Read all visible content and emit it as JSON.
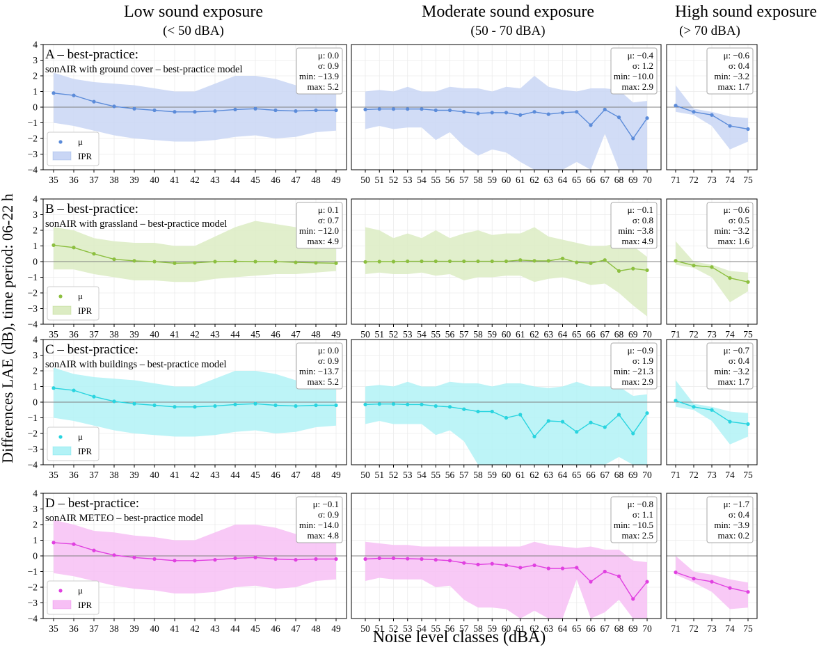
{
  "figure": {
    "ylabel": "Differences LAE (dB), time period: 06-22 h",
    "xlabel": "Noise level classes (dBA)",
    "column_headers": [
      {
        "title": "Low sound exposure",
        "subtitle": "(< 50 dBA)"
      },
      {
        "title": "Moderate sound exposure",
        "subtitle": "(50 - 70 dBA)"
      },
      {
        "title": "High sound exposure",
        "subtitle": "(> 70 dBA)"
      }
    ],
    "legend": {
      "mean_label": "μ",
      "band_label": "IPR"
    },
    "stat_labels": {
      "mean": "μ:",
      "sd": "σ:",
      "min": "min:",
      "max": "max:"
    }
  },
  "chart_data": {
    "type": "line",
    "ylim": [
      -4,
      4
    ],
    "yticks": [
      -4,
      -3,
      -2,
      -1,
      0,
      1,
      2,
      3,
      4
    ],
    "grid": true,
    "legend_placement": "bottom-left",
    "columns": [
      {
        "x": [
          35,
          36,
          37,
          38,
          39,
          40,
          41,
          42,
          43,
          44,
          45,
          46,
          47,
          48,
          49
        ]
      },
      {
        "x": [
          50,
          51,
          52,
          53,
          54,
          55,
          56,
          57,
          58,
          59,
          60,
          61,
          62,
          63,
          64,
          65,
          66,
          67,
          68,
          69,
          70
        ]
      },
      {
        "x": [
          71,
          72,
          73,
          74,
          75
        ]
      }
    ],
    "rows": [
      {
        "title": "A – best-practice:",
        "subtitle": "sonAIR with ground cover – best-practice model",
        "color": "#5b8bd9",
        "band_color": "#c9d6f5",
        "panels": [
          {
            "mean": [
              0.9,
              0.75,
              0.35,
              0.05,
              -0.1,
              -0.2,
              -0.3,
              -0.3,
              -0.25,
              -0.15,
              -0.1,
              -0.2,
              -0.25,
              -0.2,
              -0.2
            ],
            "upper": [
              2.2,
              1.8,
              1.6,
              1.5,
              1.4,
              1.2,
              1.0,
              1.0,
              1.5,
              2.0,
              2.0,
              1.8,
              1.4,
              1.0,
              1.0
            ],
            "lower": [
              -1.0,
              -1.2,
              -1.5,
              -1.8,
              -2.0,
              -2.1,
              -2.2,
              -2.2,
              -2.1,
              -1.9,
              -1.8,
              -2.0,
              -1.9,
              -1.6,
              -1.5
            ],
            "stats": {
              "mean": "0.0",
              "sd": "0.9",
              "min": "−13.9",
              "max": "5.2"
            }
          },
          {
            "mean": [
              -0.15,
              -0.12,
              -0.12,
              -0.12,
              -0.12,
              -0.2,
              -0.2,
              -0.3,
              -0.4,
              -0.35,
              -0.35,
              -0.5,
              -0.3,
              -0.45,
              -0.35,
              -0.3,
              -1.15,
              -0.15,
              -0.65,
              -2.0,
              -0.7
            ],
            "upper": [
              1.0,
              1.1,
              1.0,
              1.3,
              1.0,
              1.0,
              1.3,
              1.2,
              1.2,
              1.0,
              1.3,
              1.2,
              2.0,
              1.3,
              1.1,
              1.0,
              1.2,
              1.2,
              1.1,
              0.3,
              0.4
            ],
            "lower": [
              -1.4,
              -1.2,
              -1.4,
              -1.3,
              -1.3,
              -2.1,
              -1.6,
              -2.5,
              -3.1,
              -2.7,
              -2.9,
              -3.5,
              -4.0,
              -4.0,
              -4.0,
              -3.5,
              -4.0,
              -1.7,
              -4.0,
              -4.0,
              -4.0
            ],
            "stats": {
              "mean": "−0.4",
              "sd": "1.2",
              "min": "−10.0",
              "max": "2.9"
            }
          },
          {
            "mean": [
              0.1,
              -0.3,
              -0.5,
              -1.2,
              -1.4
            ],
            "upper": [
              1.4,
              -0.1,
              -0.3,
              -0.6,
              -0.7
            ],
            "lower": [
              -0.3,
              -0.5,
              -1.2,
              -2.7,
              -2.2
            ],
            "stats": {
              "mean": "−0.6",
              "sd": "0.4",
              "min": "−3.2",
              "max": "1.7"
            }
          }
        ]
      },
      {
        "title": "B – best-practice:",
        "subtitle": "sonAIR with grassland – best-practice model",
        "color": "#8cbf3f",
        "band_color": "#dcecc3",
        "panels": [
          {
            "mean": [
              1.05,
              0.9,
              0.5,
              0.15,
              0.05,
              0.0,
              -0.1,
              -0.08,
              0.0,
              0.02,
              0.0,
              0.0,
              -0.05,
              -0.08,
              -0.1
            ],
            "upper": [
              2.2,
              2.0,
              1.5,
              1.3,
              1.2,
              1.2,
              1.0,
              1.0,
              1.6,
              2.2,
              2.6,
              2.4,
              2.2,
              1.5,
              1.2
            ],
            "lower": [
              -0.5,
              -0.5,
              -0.8,
              -1.0,
              -1.2,
              -1.2,
              -1.3,
              -1.3,
              -1.1,
              -1.0,
              -0.9,
              -0.8,
              -0.8,
              -0.7,
              -0.6
            ],
            "stats": {
              "mean": "0.1",
              "sd": "0.7",
              "min": "−12.0",
              "max": "4.9"
            }
          },
          {
            "mean": [
              -0.02,
              0.0,
              0.0,
              0.02,
              0.02,
              0.02,
              0.02,
              0.02,
              0.02,
              0.02,
              0.02,
              0.1,
              0.05,
              0.05,
              0.2,
              -0.05,
              -0.1,
              0.1,
              -0.6,
              -0.45,
              -0.55
            ],
            "upper": [
              2.2,
              2.0,
              1.5,
              1.8,
              1.5,
              2.0,
              1.5,
              1.8,
              2.0,
              1.7,
              1.8,
              1.8,
              2.2,
              1.6,
              1.4,
              1.2,
              1.0,
              1.0,
              1.2,
              1.0,
              0.3
            ],
            "lower": [
              -0.8,
              -0.7,
              -0.8,
              -0.8,
              -0.7,
              -0.9,
              -0.8,
              -1.2,
              -1.0,
              -1.0,
              -0.9,
              -0.9,
              -1.3,
              -1.1,
              -1.0,
              -1.2,
              -1.5,
              -1.4,
              -2.0,
              -2.8,
              -3.5
            ],
            "stats": {
              "mean": "−0.1",
              "sd": "0.8",
              "min": "−3.8",
              "max": "4.9"
            }
          },
          {
            "mean": [
              0.05,
              -0.25,
              -0.35,
              -1.05,
              -1.3
            ],
            "upper": [
              1.3,
              0.0,
              -0.2,
              -0.6,
              -0.7
            ],
            "lower": [
              -0.2,
              -0.4,
              -1.0,
              -2.6,
              -1.9
            ],
            "stats": {
              "mean": "−0.6",
              "sd": "0.5",
              "min": "−3.2",
              "max": "1.6"
            }
          }
        ]
      },
      {
        "title": "C – best-practice:",
        "subtitle": "sonAIR with buildings – best-practice model",
        "color": "#29d4df",
        "band_color": "#b2f2f6",
        "panels": [
          {
            "mean": [
              0.9,
              0.75,
              0.35,
              0.05,
              -0.1,
              -0.2,
              -0.3,
              -0.3,
              -0.25,
              -0.15,
              -0.1,
              -0.2,
              -0.25,
              -0.2,
              -0.2
            ],
            "upper": [
              2.2,
              1.8,
              1.6,
              1.5,
              1.4,
              1.2,
              1.0,
              1.0,
              1.5,
              2.0,
              2.0,
              1.8,
              1.4,
              1.0,
              1.0
            ],
            "lower": [
              -1.0,
              -1.2,
              -1.5,
              -1.8,
              -2.0,
              -2.1,
              -2.2,
              -2.2,
              -2.1,
              -1.9,
              -1.8,
              -2.0,
              -1.9,
              -1.6,
              -1.5
            ],
            "stats": {
              "mean": "0.0",
              "sd": "0.9",
              "min": "−13.7",
              "max": "5.2"
            }
          },
          {
            "mean": [
              -0.15,
              -0.12,
              -0.12,
              -0.15,
              -0.15,
              -0.25,
              -0.3,
              -0.45,
              -0.6,
              -0.6,
              -1.0,
              -0.8,
              -2.2,
              -1.2,
              -1.25,
              -1.9,
              -1.3,
              -1.6,
              -0.8,
              -2.0,
              -0.7
            ],
            "upper": [
              1.0,
              1.1,
              1.0,
              1.3,
              1.0,
              1.0,
              1.3,
              1.2,
              1.2,
              1.0,
              1.2,
              1.2,
              1.0,
              0.9,
              1.0,
              1.3,
              1.0,
              1.0,
              1.0,
              0.4,
              0.5
            ],
            "lower": [
              -1.4,
              -1.2,
              -1.4,
              -1.4,
              -1.4,
              -2.1,
              -1.8,
              -2.5,
              -4.0,
              -4.0,
              -4.0,
              -4.0,
              -4.0,
              -4.0,
              -4.0,
              -4.0,
              -4.0,
              -4.0,
              -3.5,
              -4.0,
              -4.0
            ],
            "stats": {
              "mean": "−0.9",
              "sd": "1.9",
              "min": "−21.3",
              "max": "2.9"
            }
          },
          {
            "mean": [
              0.1,
              -0.3,
              -0.5,
              -1.25,
              -1.4
            ],
            "upper": [
              1.4,
              -0.1,
              -0.3,
              -0.6,
              -0.7
            ],
            "lower": [
              -0.3,
              -0.5,
              -1.2,
              -2.7,
              -2.2
            ],
            "stats": {
              "mean": "−0.7",
              "sd": "0.4",
              "min": "−3.2",
              "max": "1.7"
            }
          }
        ]
      },
      {
        "title": "D – best-practice:",
        "subtitle": "sonAIR METEO – best-practice model",
        "color": "#e040e0",
        "band_color": "#f7bff5",
        "panels": [
          {
            "mean": [
              0.85,
              0.75,
              0.35,
              0.05,
              -0.1,
              -0.2,
              -0.3,
              -0.3,
              -0.25,
              -0.15,
              -0.1,
              -0.2,
              -0.25,
              -0.2,
              -0.2
            ],
            "upper": [
              2.3,
              2.0,
              1.6,
              1.5,
              1.3,
              1.2,
              1.0,
              1.0,
              1.5,
              2.0,
              2.0,
              1.8,
              1.4,
              1.0,
              1.0
            ],
            "lower": [
              -1.1,
              -1.3,
              -1.6,
              -1.9,
              -2.1,
              -2.2,
              -2.4,
              -2.4,
              -2.3,
              -2.0,
              -1.9,
              -2.1,
              -2.0,
              -1.6,
              -1.5
            ],
            "stats": {
              "mean": "−0.1",
              "sd": "0.9",
              "min": "−14.0",
              "max": "4.8"
            }
          },
          {
            "mean": [
              -0.2,
              -0.15,
              -0.15,
              -0.18,
              -0.2,
              -0.25,
              -0.3,
              -0.45,
              -0.55,
              -0.5,
              -0.6,
              -0.75,
              -0.6,
              -0.8,
              -0.8,
              -0.75,
              -1.65,
              -1.0,
              -1.3,
              -2.75,
              -1.65
            ],
            "upper": [
              0.9,
              0.8,
              0.7,
              0.7,
              0.6,
              0.6,
              0.6,
              0.6,
              0.6,
              0.6,
              0.6,
              0.6,
              0.9,
              0.7,
              0.6,
              0.5,
              0.6,
              0.4,
              0.4,
              -0.3,
              -0.4
            ],
            "lower": [
              -1.6,
              -1.4,
              -1.5,
              -1.5,
              -1.5,
              -2.0,
              -1.9,
              -2.8,
              -3.3,
              -3.3,
              -3.4,
              -4.0,
              -3.5,
              -4.0,
              -4.0,
              -1.5,
              -4.0,
              -3.6,
              -2.8,
              -4.0,
              -4.0
            ],
            "stats": {
              "mean": "−0.8",
              "sd": "1.1",
              "min": "−10.5",
              "max": "2.5"
            }
          },
          {
            "mean": [
              -1.05,
              -1.45,
              -1.65,
              -2.05,
              -2.3
            ],
            "upper": [
              0.0,
              -1.0,
              -1.2,
              -1.5,
              -1.7
            ],
            "lower": [
              -1.2,
              -1.7,
              -2.3,
              -3.4,
              -3.3
            ],
            "stats": {
              "mean": "−1.7",
              "sd": "0.4",
              "min": "−3.9",
              "max": "0.2"
            }
          }
        ]
      }
    ]
  }
}
